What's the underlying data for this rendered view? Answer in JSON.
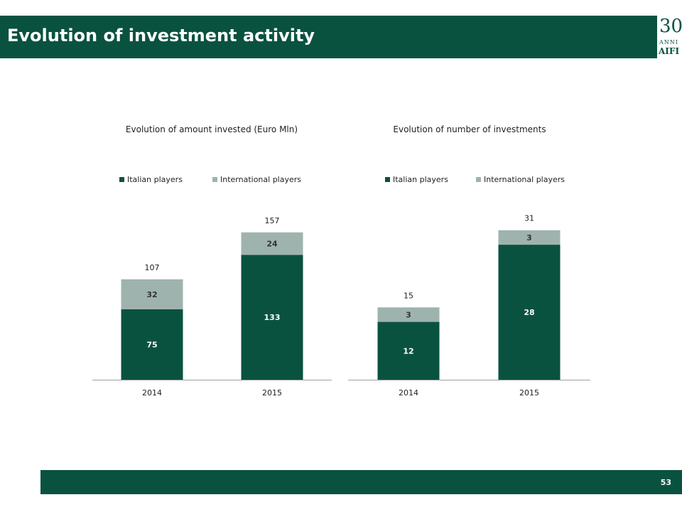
{
  "header": {
    "title": "Evolution of investment activity"
  },
  "logo": {
    "number": "30",
    "subtitle": "ANNI",
    "name": "AIFI"
  },
  "footer": {
    "page_number": "53"
  },
  "colors": {
    "italian": "#0a5240",
    "international": "#9fb3ae",
    "brand": "#0a5240"
  },
  "chart_data": [
    {
      "type": "bar",
      "stacked": true,
      "title": "Evolution of amount invested (Euro Mln)",
      "categories": [
        "2014",
        "2015"
      ],
      "series": [
        {
          "name": "Italian players",
          "values": [
            75,
            133
          ]
        },
        {
          "name": "International players",
          "values": [
            32,
            24
          ]
        }
      ],
      "totals": [
        107,
        157
      ],
      "legend": "top",
      "ylim": [
        0,
        175
      ],
      "grid": false
    },
    {
      "type": "bar",
      "stacked": true,
      "title": "Evolution of number of investments",
      "categories": [
        "2014",
        "2015"
      ],
      "series": [
        {
          "name": "Italian players",
          "values": [
            12,
            28
          ]
        },
        {
          "name": "International players",
          "values": [
            3,
            3
          ]
        }
      ],
      "totals": [
        15,
        31
      ],
      "legend": "top",
      "ylim": [
        0,
        34.5
      ],
      "grid": false
    }
  ]
}
